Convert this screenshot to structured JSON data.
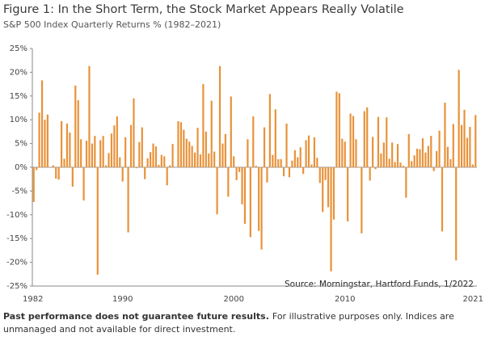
{
  "chart_data": {
    "type": "bar",
    "title": "Figure 1: In the Short Term, the Stock Market Appears Really Volatile",
    "subtitle": "S&P 500 Index Quarterly Returns % (1982–2021)",
    "annotation": "Source: Morningstar, Hartford Funds, 1/2022",
    "footnote_bold": "Past performance does not guarantee future results.",
    "footnote": "For illustrative purposes only. Indices are unmanaged and not available for direct investment.",
    "color": "#e8923a",
    "categories": [
      "1982",
      null,
      null,
      null,
      null,
      null,
      null,
      null,
      null,
      null,
      null,
      null,
      null,
      null,
      null,
      null,
      null,
      null,
      null,
      null,
      null,
      null,
      null,
      null,
      null,
      null,
      null,
      null,
      null,
      null,
      null,
      null,
      "1990",
      null,
      null,
      null,
      null,
      null,
      null,
      null,
      null,
      null,
      null,
      null,
      null,
      null,
      null,
      null,
      null,
      null,
      null,
      null,
      null,
      null,
      null,
      null,
      null,
      null,
      null,
      null,
      null,
      null,
      null,
      null,
      null,
      null,
      null,
      null,
      null,
      null,
      null,
      null,
      "2000",
      null,
      null,
      null,
      null,
      null,
      null,
      null,
      null,
      null,
      null,
      null,
      null,
      null,
      null,
      null,
      null,
      null,
      null,
      null,
      null,
      null,
      null,
      null,
      null,
      null,
      null,
      null,
      null,
      null,
      null,
      null,
      null,
      null,
      null,
      null,
      null,
      null,
      null,
      null,
      "2010",
      null,
      null,
      null,
      null,
      null,
      null,
      null,
      null,
      null,
      null,
      null,
      null,
      null,
      null,
      null,
      null,
      null,
      null,
      null,
      null,
      null,
      null,
      null,
      null,
      null,
      null,
      null,
      null,
      null,
      null,
      null,
      null,
      null,
      null,
      null,
      null,
      null,
      null,
      null,
      null,
      null,
      null,
      null,
      "2021",
      null,
      null,
      null
    ],
    "values": [
      -7.3,
      -0.6,
      11.5,
      18.3,
      10.0,
      11.1,
      -0.1,
      0.4,
      -2.4,
      -2.6,
      9.7,
      1.8,
      9.2,
      7.3,
      -4.1,
      17.2,
      14.1,
      5.9,
      -7.0,
      5.6,
      21.3,
      5.0,
      6.6,
      -22.6,
      5.7,
      6.6,
      0.4,
      3.0,
      7.1,
      8.8,
      10.7,
      2.1,
      -3.0,
      6.3,
      -13.7,
      8.9,
      14.5,
      -0.2,
      5.3,
      8.4,
      -2.5,
      1.9,
      3.2,
      5.0,
      4.4,
      0.5,
      2.6,
      2.3,
      -3.8,
      0.4,
      4.9,
      0.0,
      9.7,
      9.5,
      7.9,
      6.0,
      5.4,
      4.5,
      3.1,
      8.3,
      2.7,
      17.5,
      7.5,
      2.9,
      14.0,
      3.3,
      -9.9,
      21.3,
      5.0,
      7.0,
      -6.2,
      14.9,
      2.3,
      -2.7,
      -1.0,
      -7.8,
      -11.9,
      5.9,
      -14.7,
      10.7,
      0.3,
      -13.4,
      -17.3,
      8.4,
      -3.2,
      15.4,
      2.6,
      12.2,
      1.7,
      1.7,
      -1.9,
      9.2,
      -2.1,
      1.4,
      3.6,
      2.1,
      4.2,
      -1.4,
      5.7,
      6.7,
      0.6,
      6.3,
      2.0,
      -3.3,
      -9.4,
      -2.7,
      -8.4,
      -21.9,
      -11.0,
      15.9,
      15.6,
      6.0,
      5.4,
      -11.4,
      11.3,
      10.8,
      5.9,
      0.1,
      -13.9,
      11.8,
      12.6,
      -2.8,
      6.4,
      -0.4,
      10.6,
      2.9,
      5.2,
      10.5,
      1.8,
      5.2,
      1.1,
      4.9,
      1.0,
      0.3,
      -6.4,
      7.0,
      1.3,
      2.5,
      3.9,
      3.8,
      6.1,
      3.1,
      4.5,
      6.6,
      -0.8,
      3.4,
      7.7,
      -13.5,
      13.6,
      4.3,
      1.7,
      9.1,
      -19.6,
      20.5,
      8.9,
      12.1,
      6.2,
      8.5,
      0.6,
      11.0
    ],
    "ylim": [
      -25,
      25
    ],
    "yticks": [
      {
        "value": -25,
        "label": "-25%"
      },
      {
        "value": -20,
        "label": "-20%"
      },
      {
        "value": -15,
        "label": "-15%"
      },
      {
        "value": -10,
        "label": "-10%"
      },
      {
        "value": -5,
        "label": "-5%"
      },
      {
        "value": 0,
        "label": "0%"
      },
      {
        "value": 5,
        "label": "5%"
      },
      {
        "value": 10,
        "label": "10%"
      },
      {
        "value": 15,
        "label": "15%"
      },
      {
        "value": 20,
        "label": "20%"
      },
      {
        "value": 25,
        "label": "25%"
      }
    ],
    "grid": false
  }
}
